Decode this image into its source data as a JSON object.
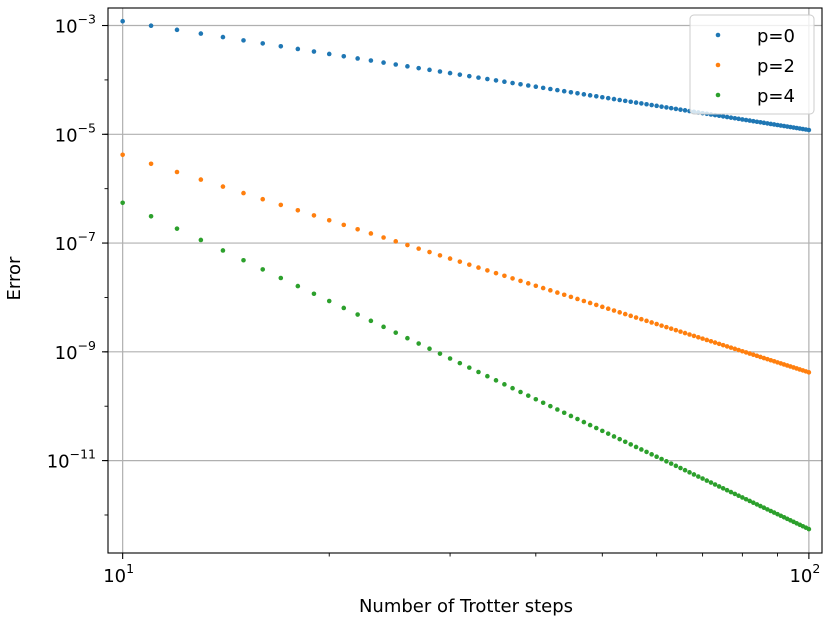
{
  "chart_data": {
    "type": "scatter",
    "xlabel": "Number of Trotter steps",
    "ylabel": "Error",
    "xscale": "log",
    "yscale": "log",
    "xlim": [
      9.52,
      104.5
    ],
    "ylim": [
      2e-13,
      0.0021
    ],
    "grid": true,
    "legend_position": "top-right",
    "x_ticks": [
      {
        "value": 10,
        "base": "10",
        "exp": "1"
      },
      {
        "value": 100,
        "base": "10",
        "exp": "2"
      }
    ],
    "y_ticks": [
      {
        "value": 0.001,
        "base": "10",
        "exp": "−3"
      },
      {
        "value": 1e-05,
        "base": "10",
        "exp": "−5"
      },
      {
        "value": 1e-07,
        "base": "10",
        "exp": "−7"
      },
      {
        "value": 1e-09,
        "base": "10",
        "exp": "−9"
      },
      {
        "value": 1e-11,
        "base": "10",
        "exp": "−11"
      }
    ],
    "x_range": {
      "start": 10,
      "end": 100,
      "step": 1
    },
    "series": [
      {
        "name": "p=0",
        "color": "#1f77b4",
        "a": 0.0012,
        "slope": -2
      },
      {
        "name": "p=2",
        "color": "#ff7f0e",
        "a": 4.2e-06,
        "slope": -4
      },
      {
        "name": "p=4",
        "color": "#2ca02c",
        "a": 5.5e-07,
        "slope": -6
      }
    ]
  }
}
